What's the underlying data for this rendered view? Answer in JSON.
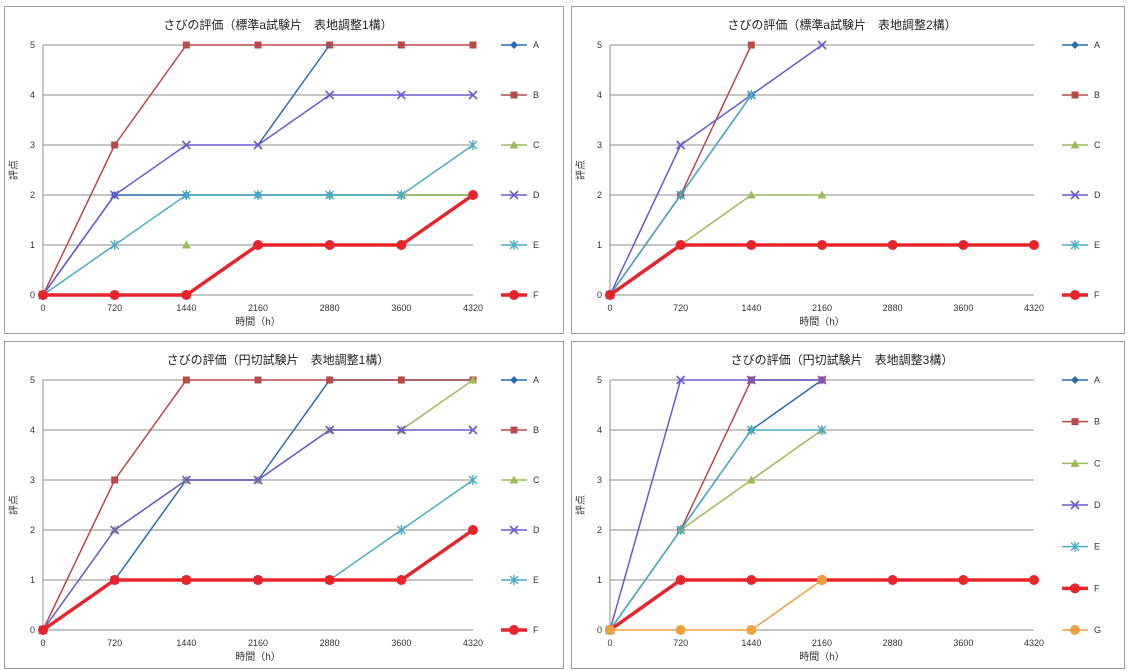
{
  "chart_data": [
    {
      "type": "line",
      "title": "さびの評価（標準a試験片　表地調整1構）",
      "xlabel": "時間（h）",
      "ylabel": "評点",
      "categories": [
        "0",
        "720",
        "1440",
        "2160",
        "2880",
        "3600",
        "4320"
      ],
      "ylim": [
        0,
        5
      ],
      "yticks": [
        "0",
        "1",
        "2",
        "3",
        "4",
        "5"
      ],
      "grid": "horizontal",
      "legend_position": "right",
      "series": [
        {
          "name": "A",
          "color": "#2a6db0",
          "marker": "diamond",
          "values": [
            0,
            2,
            2,
            2,
            2,
            2,
            2
          ]
        },
        {
          "name": "B",
          "color": "#b94a48",
          "marker": "square",
          "values": [
            0,
            3,
            5,
            5,
            5,
            5,
            5
          ]
        },
        {
          "name": "C",
          "color": "#9bbb59",
          "marker": "triangle",
          "values": [
            null,
            null,
            1,
            null,
            2,
            2,
            2
          ]
        },
        {
          "name": "D",
          "color": "#6a5acd",
          "marker": "x",
          "values": [
            0,
            2,
            3,
            3,
            4,
            4,
            4
          ]
        },
        {
          "name": "E",
          "color": "#4bacc6",
          "marker": "star",
          "values": [
            0,
            1,
            2,
            2,
            2,
            2,
            3
          ]
        },
        {
          "name": "F",
          "color": "#e8242b",
          "marker": "circle",
          "thick": true,
          "values": [
            0,
            0,
            0,
            1,
            1,
            1,
            2
          ]
        },
        {
          "name": "",
          "color": "#2a6db0",
          "marker": "none",
          "legend": false,
          "values": [
            null,
            null,
            null,
            3,
            5,
            null,
            null
          ]
        }
      ]
    },
    {
      "type": "line",
      "title": "さびの評価（標準a試験片　表地調整2構）",
      "xlabel": "時間（h）",
      "ylabel": "評点",
      "categories": [
        "0",
        "720",
        "1440",
        "2160",
        "2880",
        "3600",
        "4320"
      ],
      "ylim": [
        0,
        5
      ],
      "yticks": [
        "0",
        "1",
        "2",
        "3",
        "4",
        "5"
      ],
      "grid": "horizontal",
      "legend_position": "right",
      "series": [
        {
          "name": "A",
          "color": "#2a6db0",
          "marker": "diamond",
          "values": [
            0,
            2,
            4,
            null,
            null,
            null,
            null
          ]
        },
        {
          "name": "B",
          "color": "#b94a48",
          "marker": "square",
          "values": [
            0,
            2,
            5,
            null,
            null,
            null,
            null
          ]
        },
        {
          "name": "C",
          "color": "#9bbb59",
          "marker": "triangle",
          "values": [
            0,
            1,
            2,
            2,
            null,
            null,
            null
          ]
        },
        {
          "name": "D",
          "color": "#6a5acd",
          "marker": "x",
          "values": [
            0,
            3,
            4,
            5,
            null,
            null,
            null
          ]
        },
        {
          "name": "E",
          "color": "#4bacc6",
          "marker": "star",
          "values": [
            0,
            2,
            4,
            null,
            null,
            null,
            null
          ]
        },
        {
          "name": "F",
          "color": "#e8242b",
          "marker": "circle",
          "thick": true,
          "values": [
            0,
            1,
            1,
            1,
            1,
            1,
            1
          ]
        }
      ]
    },
    {
      "type": "line",
      "title": "さびの評価（円切試験片　表地調整1構）",
      "xlabel": "時間（h）",
      "ylabel": "評点",
      "categories": [
        "0",
        "720",
        "1440",
        "2160",
        "2880",
        "3600",
        "4320"
      ],
      "ylim": [
        0,
        5
      ],
      "yticks": [
        "0",
        "1",
        "2",
        "3",
        "4",
        "5"
      ],
      "grid": "horizontal",
      "legend_position": "right",
      "series": [
        {
          "name": "A",
          "color": "#2a6db0",
          "marker": "diamond",
          "values": [
            0,
            1,
            3,
            3,
            5,
            5,
            5
          ]
        },
        {
          "name": "B",
          "color": "#b94a48",
          "marker": "square",
          "values": [
            0,
            3,
            5,
            5,
            5,
            5,
            5
          ]
        },
        {
          "name": "C",
          "color": "#9bbb59",
          "marker": "triangle",
          "values": [
            0,
            2,
            3,
            3,
            4,
            4,
            5
          ]
        },
        {
          "name": "D",
          "color": "#6a5acd",
          "marker": "x",
          "values": [
            0,
            2,
            3,
            3,
            4,
            4,
            4
          ]
        },
        {
          "name": "E",
          "color": "#4bacc6",
          "marker": "star",
          "values": [
            0,
            1,
            1,
            1,
            1,
            2,
            3
          ]
        },
        {
          "name": "F",
          "color": "#e8242b",
          "marker": "circle",
          "thick": true,
          "values": [
            0,
            1,
            1,
            1,
            1,
            1,
            2
          ]
        }
      ]
    },
    {
      "type": "line",
      "title": "さびの評価（円切試験片　表地調整3構）",
      "xlabel": "時間（h）",
      "ylabel": "評点",
      "categories": [
        "0",
        "720",
        "1440",
        "2160",
        "2880",
        "3600",
        "4320"
      ],
      "ylim": [
        0,
        5
      ],
      "yticks": [
        "0",
        "1",
        "2",
        "3",
        "4",
        "5"
      ],
      "grid": "horizontal",
      "legend_position": "right",
      "series": [
        {
          "name": "A",
          "color": "#2a6db0",
          "marker": "diamond",
          "values": [
            0,
            2,
            4,
            5,
            null,
            null,
            null
          ]
        },
        {
          "name": "B",
          "color": "#b94a48",
          "marker": "square",
          "values": [
            0,
            2,
            5,
            5,
            null,
            null,
            null
          ]
        },
        {
          "name": "C",
          "color": "#9bbb59",
          "marker": "triangle",
          "values": [
            0,
            2,
            3,
            4,
            null,
            null,
            null
          ]
        },
        {
          "name": "D",
          "color": "#6a5acd",
          "marker": "x",
          "values": [
            0,
            5,
            5,
            5,
            null,
            null,
            null
          ]
        },
        {
          "name": "E",
          "color": "#4bacc6",
          "marker": "star",
          "values": [
            0,
            2,
            4,
            4,
            null,
            null,
            null
          ]
        },
        {
          "name": "F",
          "color": "#e8242b",
          "marker": "circle",
          "thick": true,
          "values": [
            0,
            1,
            1,
            1,
            1,
            1,
            1
          ]
        },
        {
          "name": "G",
          "color": "#f0a040",
          "marker": "circle",
          "values": [
            0,
            0,
            0,
            1,
            null,
            null,
            null
          ]
        }
      ]
    }
  ]
}
